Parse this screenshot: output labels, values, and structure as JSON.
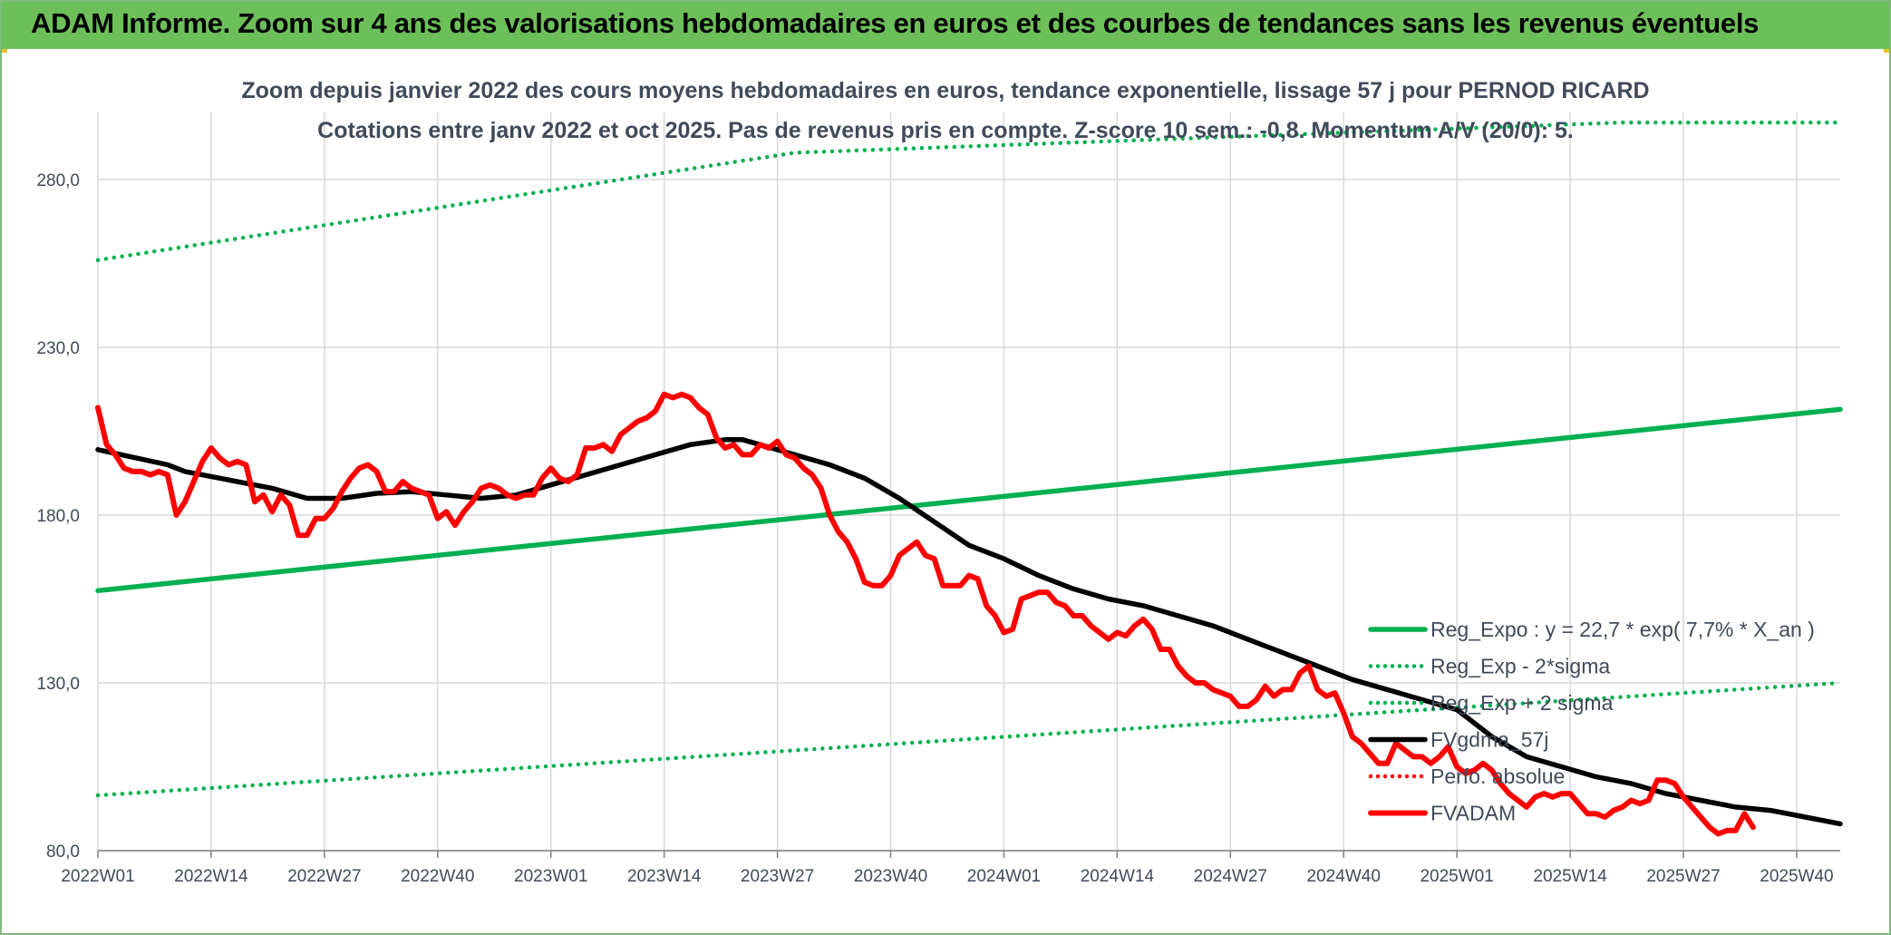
{
  "header": {
    "title": "ADAM Informe. Zoom sur 4 ans des valorisations hebdomadaires en euros et des courbes de tendances sans les revenus éventuels"
  },
  "chart_data": {
    "type": "line",
    "title": "Zoom depuis janvier 2022 des cours moyens hebdomadaires en euros, tendance exponentielle, lissage 57 j pour PERNOD RICARD",
    "subtitle": "Cotations entre janv 2022 et oct 2025. Pas de revenus pris en compte. Z-score 10 sem.: -0,8. Momentum A/V (20/0): 5.",
    "xlabel": "",
    "ylabel": "",
    "ylim": [
      80,
      300
    ],
    "yticks": [
      80,
      130,
      180,
      230,
      280
    ],
    "ytick_labels": [
      "80,0",
      "130,0",
      "180,0",
      "230,0",
      "280,0"
    ],
    "x_ticks": [
      "2022W01",
      "2022W14",
      "2022W27",
      "2022W40",
      "2023W01",
      "2023W14",
      "2023W27",
      "2023W40",
      "2024W01",
      "2024W14",
      "2024W27",
      "2024W40",
      "2025W01",
      "2025W14",
      "2025W27",
      "2025W40"
    ],
    "n_weeks": 200,
    "grid": true,
    "legend_position": "bottom-right",
    "series": [
      {
        "name": "Reg_Expo : y = 22,7 * exp( 7,7% *  X_an )",
        "style": "solid",
        "color": "#00b050",
        "points": [
          [
            0,
            157.5
          ],
          [
            200,
            211.5
          ]
        ]
      },
      {
        "name": "Reg_Exp - 2*sigma",
        "style": "dotted",
        "color": "#00b050",
        "points": [
          [
            0,
            96.5
          ],
          [
            200,
            130
          ]
        ]
      },
      {
        "name": "Reg_Exp + 2 sigma",
        "style": "dotted",
        "color": "#00b050",
        "points": [
          [
            0,
            256
          ],
          [
            80,
            288
          ],
          [
            175,
            297
          ],
          [
            200,
            297
          ]
        ]
      },
      {
        "name": "FVgdma_57j",
        "style": "solid",
        "color": "#000000",
        "points": [
          [
            0,
            199.5
          ],
          [
            8,
            195
          ],
          [
            10,
            193
          ],
          [
            14,
            191
          ],
          [
            20,
            188
          ],
          [
            24,
            185
          ],
          [
            28,
            185
          ],
          [
            32,
            186.5
          ],
          [
            36,
            187
          ],
          [
            40,
            186
          ],
          [
            44,
            185
          ],
          [
            48,
            186
          ],
          [
            52,
            189
          ],
          [
            56,
            192
          ],
          [
            60,
            195
          ],
          [
            64,
            198
          ],
          [
            68,
            201
          ],
          [
            72,
            202.5
          ],
          [
            74,
            202.5
          ],
          [
            76,
            201
          ],
          [
            80,
            198
          ],
          [
            84,
            195
          ],
          [
            88,
            191
          ],
          [
            92,
            185
          ],
          [
            96,
            178
          ],
          [
            100,
            171
          ],
          [
            104,
            167
          ],
          [
            108,
            162
          ],
          [
            112,
            158
          ],
          [
            116,
            155
          ],
          [
            120,
            153
          ],
          [
            124,
            150
          ],
          [
            128,
            147
          ],
          [
            132,
            143
          ],
          [
            136,
            139
          ],
          [
            140,
            135
          ],
          [
            144,
            131
          ],
          [
            148,
            128
          ],
          [
            152,
            125
          ],
          [
            156,
            122
          ],
          [
            160,
            114
          ],
          [
            164,
            108
          ],
          [
            168,
            105
          ],
          [
            172,
            102
          ],
          [
            176,
            100
          ],
          [
            180,
            97
          ],
          [
            184,
            95
          ],
          [
            188,
            93
          ],
          [
            192,
            92
          ],
          [
            196,
            90
          ],
          [
            200,
            88
          ]
        ]
      },
      {
        "name": "Perfo. absolue",
        "style": "dotted",
        "color": "#ff0000",
        "points": []
      },
      {
        "name": "FVADAM",
        "style": "solid",
        "color": "#ff0000",
        "points": [
          [
            0,
            212
          ],
          [
            1,
            201
          ],
          [
            2,
            198
          ],
          [
            3,
            194
          ],
          [
            4,
            193
          ],
          [
            5,
            193
          ],
          [
            6,
            192
          ],
          [
            7,
            193
          ],
          [
            8,
            192
          ],
          [
            9,
            180
          ],
          [
            10,
            184
          ],
          [
            11,
            190
          ],
          [
            12,
            196
          ],
          [
            13,
            200
          ],
          [
            14,
            197
          ],
          [
            15,
            195
          ],
          [
            16,
            196
          ],
          [
            17,
            195
          ],
          [
            18,
            184
          ],
          [
            19,
            186
          ],
          [
            20,
            181
          ],
          [
            21,
            186
          ],
          [
            22,
            183
          ],
          [
            23,
            174
          ],
          [
            24,
            174
          ],
          [
            25,
            179
          ],
          [
            26,
            179
          ],
          [
            27,
            182
          ],
          [
            28,
            187
          ],
          [
            29,
            191
          ],
          [
            30,
            194
          ],
          [
            31,
            195
          ],
          [
            32,
            193
          ],
          [
            33,
            187
          ],
          [
            34,
            187
          ],
          [
            35,
            190
          ],
          [
            36,
            188
          ],
          [
            37,
            187
          ],
          [
            38,
            186
          ],
          [
            39,
            179
          ],
          [
            40,
            181
          ],
          [
            41,
            177
          ],
          [
            42,
            181
          ],
          [
            43,
            184
          ],
          [
            44,
            188
          ],
          [
            45,
            189
          ],
          [
            46,
            188
          ],
          [
            47,
            186
          ],
          [
            48,
            185
          ],
          [
            49,
            186
          ],
          [
            50,
            186
          ],
          [
            51,
            191
          ],
          [
            52,
            194
          ],
          [
            53,
            191
          ],
          [
            54,
            190
          ],
          [
            55,
            192
          ],
          [
            56,
            200
          ],
          [
            57,
            200
          ],
          [
            58,
            201
          ],
          [
            59,
            199
          ],
          [
            60,
            204
          ],
          [
            61,
            206
          ],
          [
            62,
            208
          ],
          [
            63,
            209
          ],
          [
            64,
            211
          ],
          [
            65,
            216
          ],
          [
            66,
            215
          ],
          [
            67,
            216
          ],
          [
            68,
            215
          ],
          [
            69,
            212
          ],
          [
            70,
            210
          ],
          [
            71,
            203
          ],
          [
            72,
            200
          ],
          [
            73,
            201
          ],
          [
            74,
            198
          ],
          [
            75,
            198
          ],
          [
            76,
            201
          ],
          [
            77,
            200
          ],
          [
            78,
            202
          ],
          [
            79,
            198
          ],
          [
            80,
            197
          ],
          [
            81,
            194
          ],
          [
            82,
            192
          ],
          [
            83,
            188
          ],
          [
            84,
            180
          ],
          [
            85,
            175
          ],
          [
            86,
            172
          ],
          [
            87,
            167
          ],
          [
            88,
            160
          ],
          [
            89,
            159
          ],
          [
            90,
            159
          ],
          [
            91,
            162
          ],
          [
            92,
            168
          ],
          [
            93,
            170
          ],
          [
            94,
            172
          ],
          [
            95,
            168
          ],
          [
            96,
            167
          ],
          [
            97,
            159
          ],
          [
            98,
            159
          ],
          [
            99,
            159
          ],
          [
            100,
            162
          ],
          [
            101,
            161
          ],
          [
            102,
            153
          ],
          [
            103,
            150
          ],
          [
            104,
            145
          ],
          [
            105,
            146
          ],
          [
            106,
            155
          ],
          [
            107,
            156
          ],
          [
            108,
            157
          ],
          [
            109,
            157
          ],
          [
            110,
            154
          ],
          [
            111,
            153
          ],
          [
            112,
            150
          ],
          [
            113,
            150
          ],
          [
            114,
            147
          ],
          [
            115,
            145
          ],
          [
            116,
            143
          ],
          [
            117,
            145
          ],
          [
            118,
            144
          ],
          [
            119,
            147
          ],
          [
            120,
            149
          ],
          [
            121,
            146
          ],
          [
            122,
            140
          ],
          [
            123,
            140
          ],
          [
            124,
            135
          ],
          [
            125,
            132
          ],
          [
            126,
            130
          ],
          [
            127,
            130
          ],
          [
            128,
            128
          ],
          [
            129,
            127
          ],
          [
            130,
            126
          ],
          [
            131,
            123
          ],
          [
            132,
            123
          ],
          [
            133,
            125
          ],
          [
            134,
            129
          ],
          [
            135,
            126
          ],
          [
            136,
            128
          ],
          [
            137,
            128
          ],
          [
            138,
            133
          ],
          [
            139,
            135
          ],
          [
            140,
            128
          ],
          [
            141,
            126
          ],
          [
            142,
            127
          ],
          [
            143,
            121
          ],
          [
            144,
            114
          ],
          [
            145,
            112
          ],
          [
            146,
            109
          ],
          [
            147,
            106
          ],
          [
            148,
            106
          ],
          [
            149,
            112
          ],
          [
            150,
            110
          ],
          [
            151,
            108
          ],
          [
            152,
            108
          ],
          [
            153,
            106
          ],
          [
            154,
            108
          ],
          [
            155,
            111
          ],
          [
            156,
            105
          ],
          [
            157,
            103
          ],
          [
            158,
            104
          ],
          [
            159,
            106
          ],
          [
            160,
            104
          ],
          [
            161,
            100
          ],
          [
            162,
            97
          ],
          [
            163,
            95
          ],
          [
            164,
            93
          ],
          [
            165,
            96
          ],
          [
            166,
            97
          ],
          [
            167,
            96
          ],
          [
            168,
            97
          ],
          [
            169,
            97
          ],
          [
            170,
            94
          ],
          [
            171,
            91
          ],
          [
            172,
            91
          ],
          [
            173,
            90
          ],
          [
            174,
            92
          ],
          [
            175,
            93
          ],
          [
            176,
            95
          ],
          [
            177,
            94
          ],
          [
            178,
            95
          ],
          [
            179,
            101
          ],
          [
            180,
            101
          ],
          [
            181,
            100
          ],
          [
            182,
            96
          ],
          [
            183,
            93
          ],
          [
            184,
            90
          ],
          [
            185,
            87
          ],
          [
            186,
            85
          ],
          [
            187,
            86
          ],
          [
            188,
            86
          ],
          [
            189,
            91
          ],
          [
            190,
            87
          ]
        ]
      }
    ]
  }
}
